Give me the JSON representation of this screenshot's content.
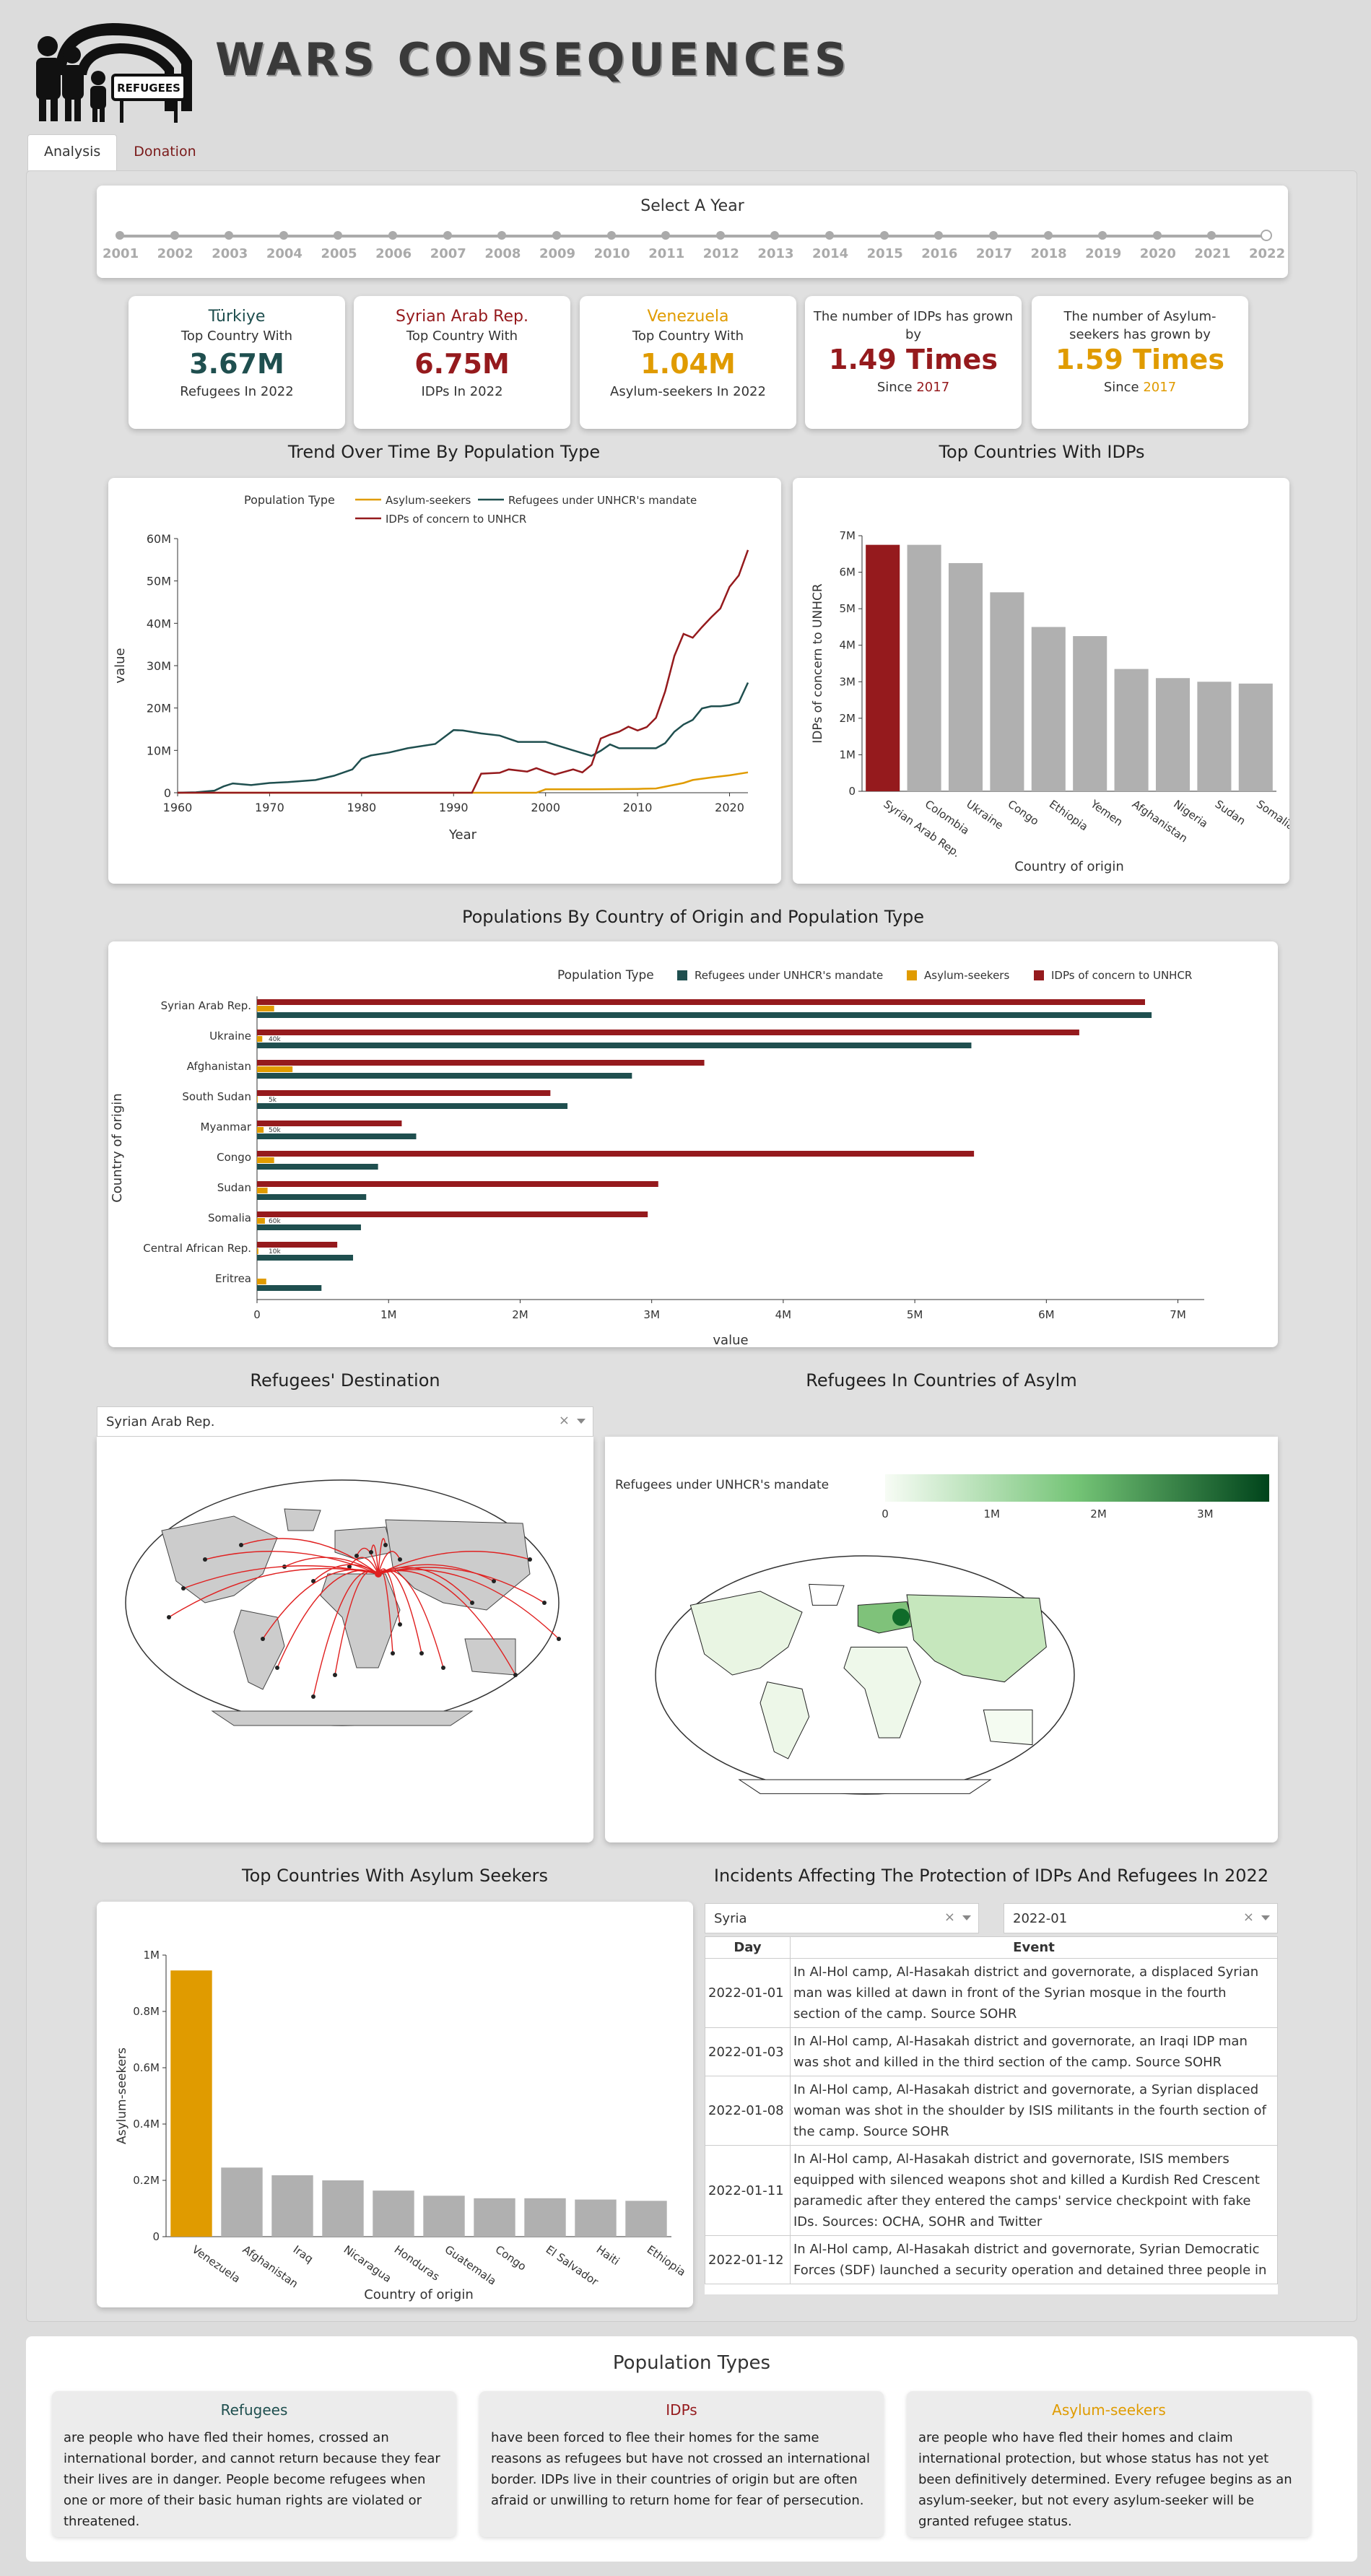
{
  "header": {
    "title": "WARS CONSEQUENCES",
    "logo_text": "REFUGEES"
  },
  "tabs": [
    {
      "label": "Analysis"
    },
    {
      "label": "Donation"
    }
  ],
  "year_slider": {
    "title": "Select A Year",
    "years": [
      "2001",
      "2002",
      "2003",
      "2004",
      "2005",
      "2006",
      "2007",
      "2008",
      "2009",
      "2010",
      "2011",
      "2012",
      "2013",
      "2014",
      "2015",
      "2016",
      "2017",
      "2018",
      "2019",
      "2020",
      "2021",
      "2022"
    ],
    "selected": "2022"
  },
  "kpis": [
    {
      "country": "Türkiye",
      "sub": "Top Country With",
      "value": "3.67M",
      "foot": "Refugees In 2022",
      "color": "#1f4f4f"
    },
    {
      "country": "Syrian Arab Rep.",
      "sub": "Top Country With",
      "value": "6.75M",
      "foot": "IDPs In 2022",
      "color": "#951a1d"
    },
    {
      "country": "Venezuela",
      "sub": "Top Country With",
      "value": "1.04M",
      "foot": "Asylum-seekers In 2022",
      "color": "#e09b00"
    }
  ],
  "growth": [
    {
      "line1": "The number of IDPs has grown",
      "line2": "by",
      "value": "1.49 Times",
      "since": "Since",
      "year": "2017",
      "color": "#951a1d"
    },
    {
      "line1": "The number of Asylum-",
      "line2": "seekers has grown by",
      "value": "1.59 Times",
      "since": "Since",
      "year": "2017",
      "color": "#e09b00"
    }
  ],
  "titles": {
    "trend": "Trend Over Time By Population Type",
    "top_idps": "Top Countries With IDPs",
    "pop_by_country": "Populations By Country of Origin and Population Type",
    "destination": "Refugees' Destination",
    "asylum_map": "Refugees In Countries of Asylm",
    "top_asylum": "Top Countries With Asylum Seekers",
    "incidents": "Incidents Affecting The Protection of IDPs And Refugees In 2022"
  },
  "destination_dropdown": {
    "value": "Syrian Arab Rep."
  },
  "asylum_map": {
    "legend_title": "Refugees under UNHCR's mandate",
    "ticks": [
      "0",
      "1M",
      "2M",
      "3M"
    ]
  },
  "incident_filters": {
    "country": "Syria",
    "month": "2022-01"
  },
  "incidents": {
    "headers": [
      "Day",
      "Event"
    ],
    "rows": [
      {
        "day": "2022-01-01",
        "event": "In Al-Hol camp, Al-Hasakah district and governorate, a displaced Syrian man was killed at dawn in front of the Syrian mosque in the fourth section of the camp. Source SOHR"
      },
      {
        "day": "2022-01-03",
        "event": "In Al-Hol camp, Al-Hasakah district and governorate, an Iraqi IDP man was shot and killed in the third section of the camp. Source SOHR"
      },
      {
        "day": "2022-01-08",
        "event": "In Al-Hol camp, Al-Hasakah district and governorate, a Syrian displaced woman was shot in the shoulder by ISIS militants in the fourth section of the camp. Source SOHR"
      },
      {
        "day": "2022-01-11",
        "event": "In Al-Hol camp, Al-Hasakah district and governorate, ISIS members equipped with silenced weapons shot and killed a Kurdish Red Crescent paramedic after they entered the camps' service checkpoint with fake IDs. Sources: OCHA, SOHR and Twitter"
      },
      {
        "day": "2022-01-12",
        "event": "In Al-Hol camp, Al-Hasakah district and governorate, Syrian Democratic Forces (SDF) launched a security operation and detained three people in"
      }
    ]
  },
  "population_types": {
    "title": "Population Types",
    "items": [
      {
        "name": "Refugees",
        "color": "#1f4f4f",
        "text": "are people who have fled their homes, crossed an international border, and cannot return because they fear their lives are in danger. People become refugees when one or more of their basic human rights are violated or threatened."
      },
      {
        "name": "IDPs",
        "color": "#951a1d",
        "text": "have been forced to flee their homes for the same reasons as refugees but have not crossed an international border. IDPs live in their countries of origin but are often afraid or unwilling to return home for fear of persecution."
      },
      {
        "name": "Asylum-seekers",
        "color": "#e09b00",
        "text": "are people who have fled their homes and claim international protection, but whose status has not yet been definitively determined. Every refugee begins as an asylum-seeker, but not every asylum-seeker will be granted refugee status."
      }
    ]
  },
  "chart_data": [
    {
      "type": "line",
      "id": "trend",
      "legend_title": "Population Type",
      "xlabel": "Year",
      "ylabel": "value",
      "xlim": [
        1960,
        2022
      ],
      "ylim": [
        0,
        60000000
      ],
      "xticks": [
        "1960",
        "1970",
        "1980",
        "1990",
        "2000",
        "2010",
        "2020"
      ],
      "yticks": [
        "0",
        "10M",
        "20M",
        "30M",
        "40M",
        "50M",
        "60M"
      ],
      "series": [
        {
          "name": "Asylum-seekers",
          "color": "#e09b00",
          "x": [
            1960,
            1999,
            2000,
            2005,
            2010,
            2012,
            2015,
            2016,
            2018,
            2020,
            2022
          ],
          "y": [
            0,
            0,
            800000,
            800000,
            900000,
            1000000,
            2300000,
            3000000,
            3600000,
            4100000,
            4800000
          ]
        },
        {
          "name": "Refugees under UNHCR's mandate",
          "color": "#1f4f4f",
          "x": [
            1960,
            1962,
            1964,
            1965,
            1966,
            1968,
            1970,
            1972,
            1975,
            1977,
            1979,
            1980,
            1981,
            1983,
            1985,
            1988,
            1990,
            1991,
            1993,
            1995,
            1997,
            2000,
            2003,
            2005,
            2006,
            2007,
            2008,
            2010,
            2012,
            2013,
            2014,
            2015,
            2016,
            2017,
            2018,
            2019,
            2020,
            2021,
            2022
          ],
          "y": [
            0,
            100000,
            500000,
            1500000,
            2200000,
            1800000,
            2300000,
            2500000,
            3000000,
            4000000,
            5500000,
            8000000,
            8800000,
            9500000,
            10500000,
            11500000,
            14800000,
            14700000,
            14000000,
            13500000,
            12000000,
            12000000,
            10000000,
            8700000,
            9900000,
            11400000,
            10500000,
            10500000,
            10500000,
            11700000,
            14400000,
            16100000,
            17200000,
            19900000,
            20400000,
            20400000,
            20700000,
            21300000,
            26000000
          ]
        },
        {
          "name": "IDPs of concern to UNHCR",
          "color": "#951a1d",
          "x": [
            1960,
            1992,
            1993,
            1995,
            1996,
            1998,
            1999,
            2000,
            2001,
            2003,
            2004,
            2005,
            2006,
            2007,
            2008,
            2009,
            2010,
            2011,
            2012,
            2013,
            2014,
            2015,
            2016,
            2017,
            2018,
            2019,
            2020,
            2021,
            2022
          ],
          "y": [
            0,
            0,
            4500000,
            4700000,
            5500000,
            5000000,
            5800000,
            5000000,
            4300000,
            5500000,
            4800000,
            6600000,
            12800000,
            13700000,
            14400000,
            15600000,
            14700000,
            15500000,
            17700000,
            23900000,
            32300000,
            37500000,
            36600000,
            39100000,
            41400000,
            43500000,
            48600000,
            51300000,
            57300000
          ]
        }
      ]
    },
    {
      "type": "bar",
      "id": "top_idps",
      "xlabel": "Country of origin",
      "ylabel": "IDPs of concern to UNHCR",
      "ylim": [
        0,
        7000000
      ],
      "yticks": [
        "0",
        "1M",
        "2M",
        "3M",
        "4M",
        "5M",
        "6M",
        "7M"
      ],
      "categories": [
        "Syrian Arab Rep.",
        "Colombia",
        "Ukraine",
        "Congo",
        "Ethiopia",
        "Yemen",
        "Afghanistan",
        "Nigeria",
        "Sudan",
        "Somalia"
      ],
      "values": [
        6750000,
        6750000,
        6250000,
        5450000,
        4500000,
        4250000,
        3350000,
        3100000,
        3000000,
        2950000
      ],
      "highlight": "#951a1d",
      "base": "#b0b0b0"
    },
    {
      "type": "bar",
      "id": "pop_by_country",
      "orientation": "horizontal",
      "legend_title": "Population Type",
      "xlabel": "value",
      "ylabel": "Country of origin",
      "xlim": [
        0,
        7200000
      ],
      "xticks": [
        "0",
        "1M",
        "2M",
        "3M",
        "4M",
        "5M",
        "6M",
        "7M"
      ],
      "categories": [
        "Syrian Arab Rep.",
        "Ukraine",
        "Afghanistan",
        "South Sudan",
        "Myanmar",
        "Congo",
        "Sudan",
        "Somalia",
        "Central African Rep.",
        "Eritrea"
      ],
      "series": [
        {
          "name": "Refugees under UNHCR's mandate",
          "color": "#1f4f4f",
          "values": [
            6800000,
            5430000,
            2850000,
            2360000,
            1210000,
            920000,
            830000,
            790000,
            730000,
            490000
          ]
        },
        {
          "name": "Asylum-seekers",
          "color": "#e09b00",
          "values": [
            130000,
            40000,
            270000,
            5000,
            50000,
            130000,
            80000,
            60000,
            10000,
            70000
          ]
        },
        {
          "name": "IDPs of concern to UNHCR",
          "color": "#951a1d",
          "values": [
            6750000,
            6250000,
            3400000,
            2230000,
            1100000,
            5450000,
            3050000,
            2970000,
            610000,
            0
          ]
        }
      ],
      "data_labels": [
        "",
        "40k",
        "",
        "5k",
        "50k",
        "",
        "",
        "60k",
        "10k",
        ""
      ]
    },
    {
      "type": "bar",
      "id": "top_asylum",
      "xlabel": "Country of origin",
      "ylabel": "Asylum-seekers",
      "ylim": [
        0,
        1100000
      ],
      "yticks": [
        "0",
        "0.2M",
        "0.4M",
        "0.6M",
        "0.8M",
        "1M"
      ],
      "categories": [
        "Venezuela",
        "Afghanistan",
        "Iraq",
        "Nicaragua",
        "Honduras",
        "Guatemala",
        "Congo",
        "El Salvador",
        "Haiti",
        "Ethiopia"
      ],
      "values": [
        1040000,
        270000,
        240000,
        220000,
        180000,
        160000,
        150000,
        150000,
        145000,
        140000
      ],
      "highlight": "#e09b00",
      "base": "#b0b0b0"
    }
  ]
}
